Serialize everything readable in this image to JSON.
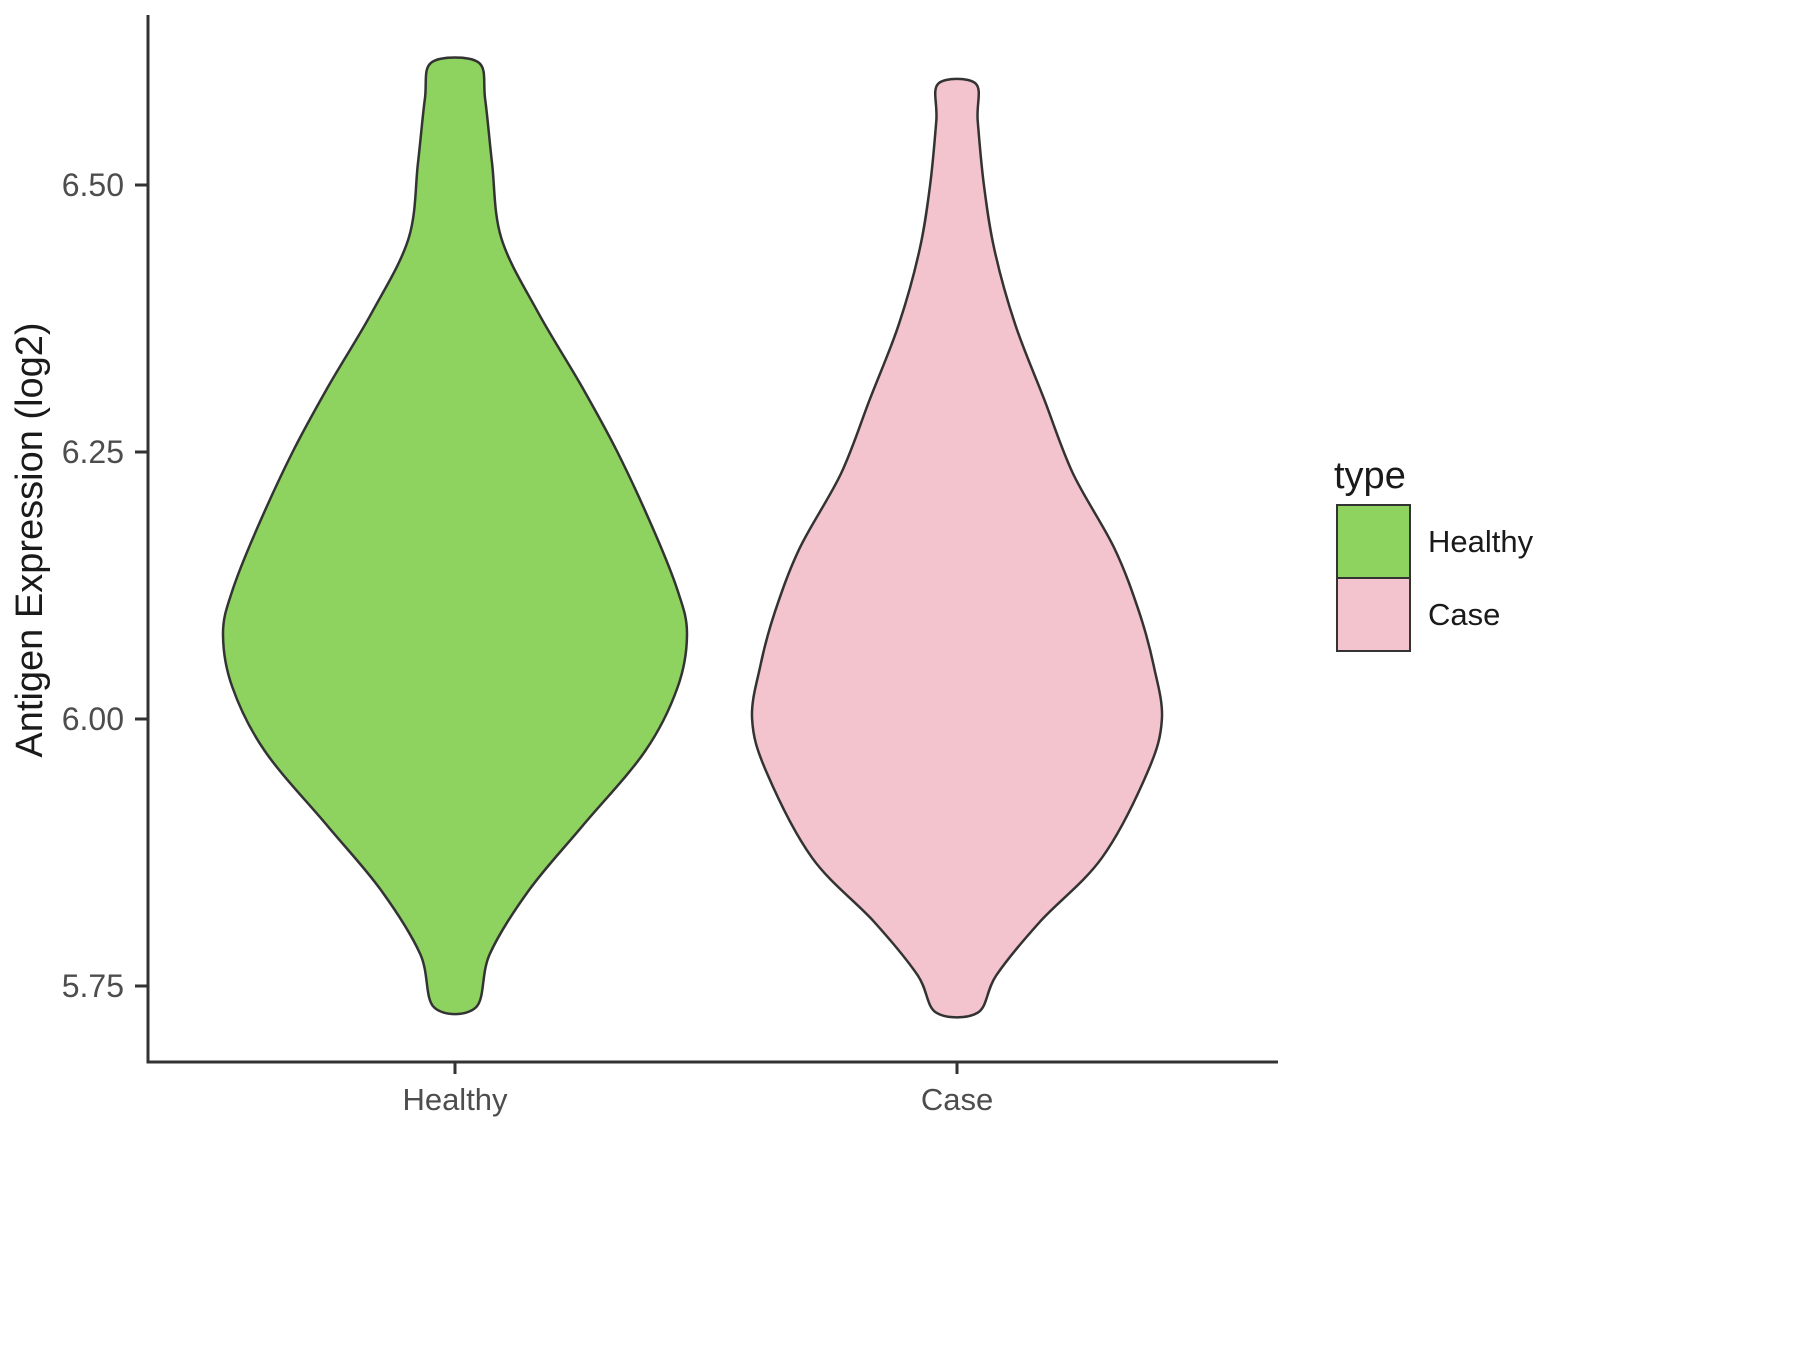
{
  "figure": {
    "background_color": "#FFFFFF",
    "axis_color": "#333333",
    "tick_label_color": "#4D4D4D",
    "text_color": "#1A1A1A"
  },
  "chart_data": {
    "type": "violin",
    "title": "",
    "xlabel": "",
    "ylabel": "Antigen Expression (log2)",
    "categories": [
      "Healthy",
      "Case"
    ],
    "ylim": [
      5.62,
      6.68
    ],
    "grid": false,
    "legend_position": "right",
    "y_ticks": [
      {
        "label": "6.50",
        "value": 6.5
      },
      {
        "label": "6.25",
        "value": 6.25
      },
      {
        "label": "6.00",
        "value": 6.0
      },
      {
        "label": "5.75",
        "value": 5.75
      }
    ],
    "legend": {
      "title": "type",
      "entries": [
        {
          "label": "Healthy",
          "color": "#8ED25F"
        },
        {
          "label": "Case",
          "color": "#F3C3CE"
        }
      ]
    },
    "series": [
      {
        "name": "Healthy",
        "fill": "#8ED25F",
        "outline": "#333333",
        "value_range": [
          5.73,
          6.615
        ],
        "peak_value": 6.08,
        "profile": [
          {
            "v": 6.615,
            "w": 0.1
          },
          {
            "v": 6.58,
            "w": 0.13
          },
          {
            "v": 6.52,
            "w": 0.16
          },
          {
            "v": 6.45,
            "w": 0.2
          },
          {
            "v": 6.38,
            "w": 0.36
          },
          {
            "v": 6.31,
            "w": 0.55
          },
          {
            "v": 6.25,
            "w": 0.7
          },
          {
            "v": 6.18,
            "w": 0.85
          },
          {
            "v": 6.12,
            "w": 0.96
          },
          {
            "v": 6.08,
            "w": 1.0
          },
          {
            "v": 6.03,
            "w": 0.96
          },
          {
            "v": 5.97,
            "w": 0.82
          },
          {
            "v": 5.9,
            "w": 0.55
          },
          {
            "v": 5.84,
            "w": 0.32
          },
          {
            "v": 5.78,
            "w": 0.15
          },
          {
            "v": 5.73,
            "w": 0.09
          }
        ]
      },
      {
        "name": "Case",
        "fill": "#F3C3CE",
        "outline": "#333333",
        "value_range": [
          5.725,
          6.595
        ],
        "peak_value": 6.03,
        "profile": [
          {
            "v": 6.595,
            "w": 0.09
          },
          {
            "v": 6.56,
            "w": 0.1
          },
          {
            "v": 6.5,
            "w": 0.13
          },
          {
            "v": 6.44,
            "w": 0.18
          },
          {
            "v": 6.37,
            "w": 0.28
          },
          {
            "v": 6.3,
            "w": 0.42
          },
          {
            "v": 6.23,
            "w": 0.56
          },
          {
            "v": 6.16,
            "w": 0.76
          },
          {
            "v": 6.1,
            "w": 0.88
          },
          {
            "v": 6.05,
            "w": 0.95
          },
          {
            "v": 6.0,
            "w": 0.99
          },
          {
            "v": 5.95,
            "w": 0.92
          },
          {
            "v": 5.87,
            "w": 0.7
          },
          {
            "v": 5.81,
            "w": 0.4
          },
          {
            "v": 5.76,
            "w": 0.19
          },
          {
            "v": 5.725,
            "w": 0.1
          }
        ]
      }
    ]
  }
}
